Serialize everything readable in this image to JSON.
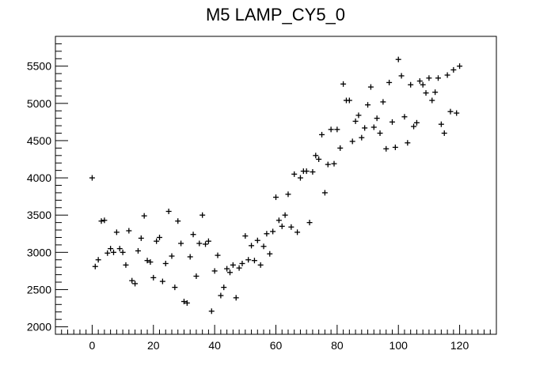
{
  "chart_data": {
    "type": "scatter",
    "title": "M5 LAMP_CY5_0",
    "xlabel": "",
    "ylabel": "",
    "xlim": [
      -12,
      132
    ],
    "ylim": [
      1900,
      5900
    ],
    "x_ticks": [
      0,
      20,
      40,
      60,
      80,
      100,
      120
    ],
    "y_ticks": [
      2000,
      2500,
      3000,
      3500,
      4000,
      4500,
      5000,
      5500
    ],
    "x_tick_labels": [
      "0",
      "20",
      "40",
      "60",
      "80",
      "100",
      "120"
    ],
    "y_tick_labels": [
      "2000",
      "2500",
      "3000",
      "3500",
      "4000",
      "4500",
      "5000",
      "5500"
    ],
    "grid": false,
    "marker": "+",
    "marker_color": "#000000",
    "points": [
      [
        0,
        4000
      ],
      [
        1,
        2810
      ],
      [
        2,
        2900
      ],
      [
        3,
        3420
      ],
      [
        4,
        3430
      ],
      [
        5,
        2990
      ],
      [
        6,
        3050
      ],
      [
        7,
        3000
      ],
      [
        8,
        3270
      ],
      [
        9,
        3050
      ],
      [
        10,
        3000
      ],
      [
        11,
        2830
      ],
      [
        12,
        3290
      ],
      [
        13,
        2620
      ],
      [
        14,
        2580
      ],
      [
        15,
        3020
      ],
      [
        16,
        3190
      ],
      [
        17,
        3490
      ],
      [
        18,
        2890
      ],
      [
        19,
        2870
      ],
      [
        20,
        2660
      ],
      [
        21,
        3150
      ],
      [
        22,
        3200
      ],
      [
        23,
        2610
      ],
      [
        24,
        2850
      ],
      [
        25,
        3550
      ],
      [
        26,
        2950
      ],
      [
        27,
        2530
      ],
      [
        28,
        3420
      ],
      [
        29,
        3120
      ],
      [
        30,
        2340
      ],
      [
        31,
        2320
      ],
      [
        32,
        2940
      ],
      [
        33,
        3240
      ],
      [
        34,
        2680
      ],
      [
        35,
        3120
      ],
      [
        36,
        3500
      ],
      [
        37,
        3110
      ],
      [
        38,
        3150
      ],
      [
        39,
        2210
      ],
      [
        40,
        2750
      ],
      [
        41,
        2960
      ],
      [
        42,
        2420
      ],
      [
        43,
        2530
      ],
      [
        44,
        2780
      ],
      [
        45,
        2730
      ],
      [
        46,
        2830
      ],
      [
        47,
        2390
      ],
      [
        48,
        2790
      ],
      [
        49,
        2850
      ],
      [
        50,
        3220
      ],
      [
        51,
        2900
      ],
      [
        52,
        3090
      ],
      [
        53,
        2890
      ],
      [
        54,
        3160
      ],
      [
        55,
        2830
      ],
      [
        56,
        3080
      ],
      [
        57,
        3250
      ],
      [
        58,
        2980
      ],
      [
        59,
        3280
      ],
      [
        60,
        3740
      ],
      [
        61,
        3430
      ],
      [
        62,
        3350
      ],
      [
        63,
        3500
      ],
      [
        64,
        3780
      ],
      [
        65,
        3340
      ],
      [
        66,
        4050
      ],
      [
        67,
        3270
      ],
      [
        68,
        4000
      ],
      [
        69,
        4090
      ],
      [
        70,
        4090
      ],
      [
        71,
        3400
      ],
      [
        72,
        4080
      ],
      [
        73,
        4300
      ],
      [
        74,
        4250
      ],
      [
        75,
        4580
      ],
      [
        76,
        3800
      ],
      [
        77,
        4180
      ],
      [
        78,
        4650
      ],
      [
        79,
        4190
      ],
      [
        80,
        4650
      ],
      [
        81,
        4400
      ],
      [
        82,
        5260
      ],
      [
        83,
        5040
      ],
      [
        84,
        5040
      ],
      [
        85,
        4490
      ],
      [
        86,
        4760
      ],
      [
        87,
        4840
      ],
      [
        88,
        4540
      ],
      [
        89,
        4670
      ],
      [
        90,
        4980
      ],
      [
        91,
        5220
      ],
      [
        92,
        4680
      ],
      [
        93,
        4800
      ],
      [
        94,
        4600
      ],
      [
        95,
        5020
      ],
      [
        96,
        4390
      ],
      [
        97,
        5280
      ],
      [
        98,
        4750
      ],
      [
        99,
        4410
      ],
      [
        100,
        5590
      ],
      [
        101,
        5370
      ],
      [
        102,
        4820
      ],
      [
        103,
        4470
      ],
      [
        104,
        5250
      ],
      [
        105,
        4690
      ],
      [
        106,
        4740
      ],
      [
        107,
        5300
      ],
      [
        108,
        5250
      ],
      [
        109,
        5140
      ],
      [
        110,
        5340
      ],
      [
        111,
        5040
      ],
      [
        112,
        5150
      ],
      [
        113,
        5340
      ],
      [
        114,
        4720
      ],
      [
        115,
        4600
      ],
      [
        116,
        5380
      ],
      [
        117,
        4890
      ],
      [
        118,
        5450
      ],
      [
        119,
        4870
      ],
      [
        120,
        5500
      ]
    ]
  }
}
